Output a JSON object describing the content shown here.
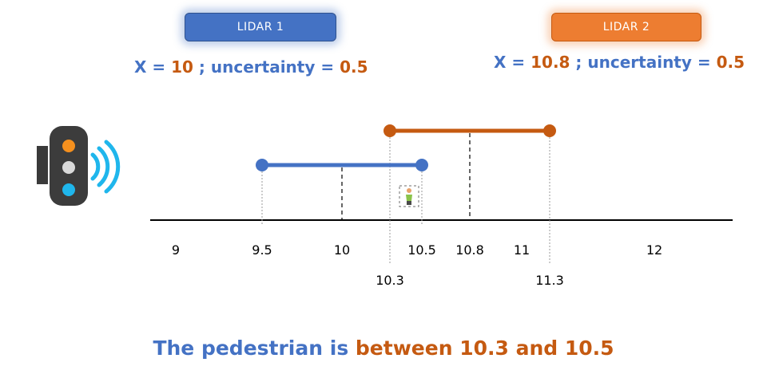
{
  "lidar1": {
    "button_label": "LIDAR 1",
    "measure": {
      "prefix": "X = ",
      "x": "10",
      "mid": " ; uncertainty = ",
      "uncertainty": "0.5"
    },
    "color": "#4472c4"
  },
  "lidar2": {
    "button_label": "LIDAR 2",
    "measure": {
      "prefix": "X = ",
      "x": "10.8",
      "mid": " ; uncertainty = ",
      "uncertainty": "0.5"
    },
    "color": "#ed7d31"
  },
  "sensor": {
    "icon": "traffic-signal-radar-icon"
  },
  "pedestrian": {
    "icon": "pedestrian-icon"
  },
  "axis": {
    "ticks": [
      {
        "value": 9,
        "label": "9",
        "row": 1
      },
      {
        "value": 9.5,
        "label": "9.5",
        "row": 1
      },
      {
        "value": 10,
        "label": "10",
        "row": 1
      },
      {
        "value": 10.3,
        "label": "10.3",
        "row": 2
      },
      {
        "value": 10.5,
        "label": "10.5",
        "row": 1
      },
      {
        "value": 10.8,
        "label": "10.8",
        "row": 1
      },
      {
        "value": 11,
        "label": "11",
        "row": 1
      },
      {
        "value": 11.3,
        "label": "11.3",
        "row": 2
      },
      {
        "value": 12,
        "label": "12",
        "row": 1
      }
    ]
  },
  "intervals": [
    {
      "name": "LIDAR 1",
      "center": 10,
      "low": 9.5,
      "high": 10.5,
      "color": "#4472c4"
    },
    {
      "name": "LIDAR 2",
      "center": 10.8,
      "low": 10.3,
      "high": 11.3,
      "color": "#c55a11"
    }
  ],
  "conclusion": {
    "part1": "The pedestrian is ",
    "part2": "between 10.3 and 10.5"
  }
}
